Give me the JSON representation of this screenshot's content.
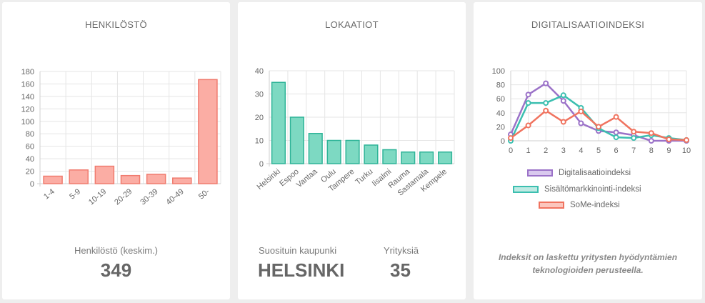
{
  "cards": {
    "staff": {
      "title": "HENKILÖSTÖ",
      "stat_label": "Henkilöstö (keskim.)",
      "stat_value": "349"
    },
    "locations": {
      "title": "LOKAATIOT",
      "popular_label": "Suosituin kaupunki",
      "popular_value": "HELSINKI",
      "companies_label": "Yrityksiä",
      "companies_value": "35"
    },
    "digital": {
      "title": "DIGITALISAATIOINDEKSI",
      "footnote_line1": "Indeksit on laskettu yritysten hyödyntämien",
      "footnote_line2": "teknologioiden perusteella."
    }
  },
  "chart_data": [
    {
      "type": "bar",
      "categories": [
        "1-4",
        "5-9",
        "10-19",
        "20-29",
        "30-39",
        "40-49",
        "50-"
      ],
      "values": [
        12,
        22,
        28,
        13,
        15,
        9,
        167
      ],
      "ylim": [
        0,
        180
      ],
      "yticks": [
        0,
        20,
        40,
        60,
        80,
        100,
        120,
        140,
        160,
        180
      ],
      "grid": true,
      "colors": {
        "fill": "#fbada4",
        "stroke": "#f07b6e"
      }
    },
    {
      "type": "bar",
      "categories": [
        "Helsinki",
        "Espoo",
        "Vantaa",
        "Oulu",
        "Tampere",
        "Turku",
        "Iisalmi",
        "Rauma",
        "Sastamala",
        "Kempele"
      ],
      "values": [
        35,
        20,
        13,
        10,
        10,
        8,
        6,
        5,
        5,
        5
      ],
      "ylim": [
        0,
        40
      ],
      "yticks": [
        0,
        10,
        20,
        30,
        40
      ],
      "grid": true,
      "colors": {
        "fill": "#7dd9c2",
        "stroke": "#2fb498"
      }
    },
    {
      "type": "line",
      "x": [
        0,
        1,
        2,
        3,
        4,
        5,
        6,
        7,
        8,
        9,
        10
      ],
      "ylim": [
        0,
        100
      ],
      "yticks": [
        0,
        20,
        40,
        60,
        80,
        100
      ],
      "grid": true,
      "legend_position": "bottom",
      "series": [
        {
          "name": "Digitalisaatioindeksi",
          "values": [
            9,
            66,
            82,
            57,
            25,
            14,
            12,
            8,
            0,
            0,
            0
          ],
          "color": "#9b72c8",
          "fill": "#d9c9ee"
        },
        {
          "name": "Sisältömarkkinointi-indeksi",
          "values": [
            0,
            54,
            54,
            65,
            47,
            18,
            5,
            4,
            8,
            4,
            1
          ],
          "color": "#3cbfb0",
          "fill": "#bfeae3"
        },
        {
          "name": "SoMe-indeksi",
          "values": [
            4,
            22,
            43,
            27,
            42,
            20,
            34,
            13,
            11,
            2,
            1
          ],
          "color": "#f0735f",
          "fill": "#fbc6bd"
        }
      ]
    }
  ]
}
